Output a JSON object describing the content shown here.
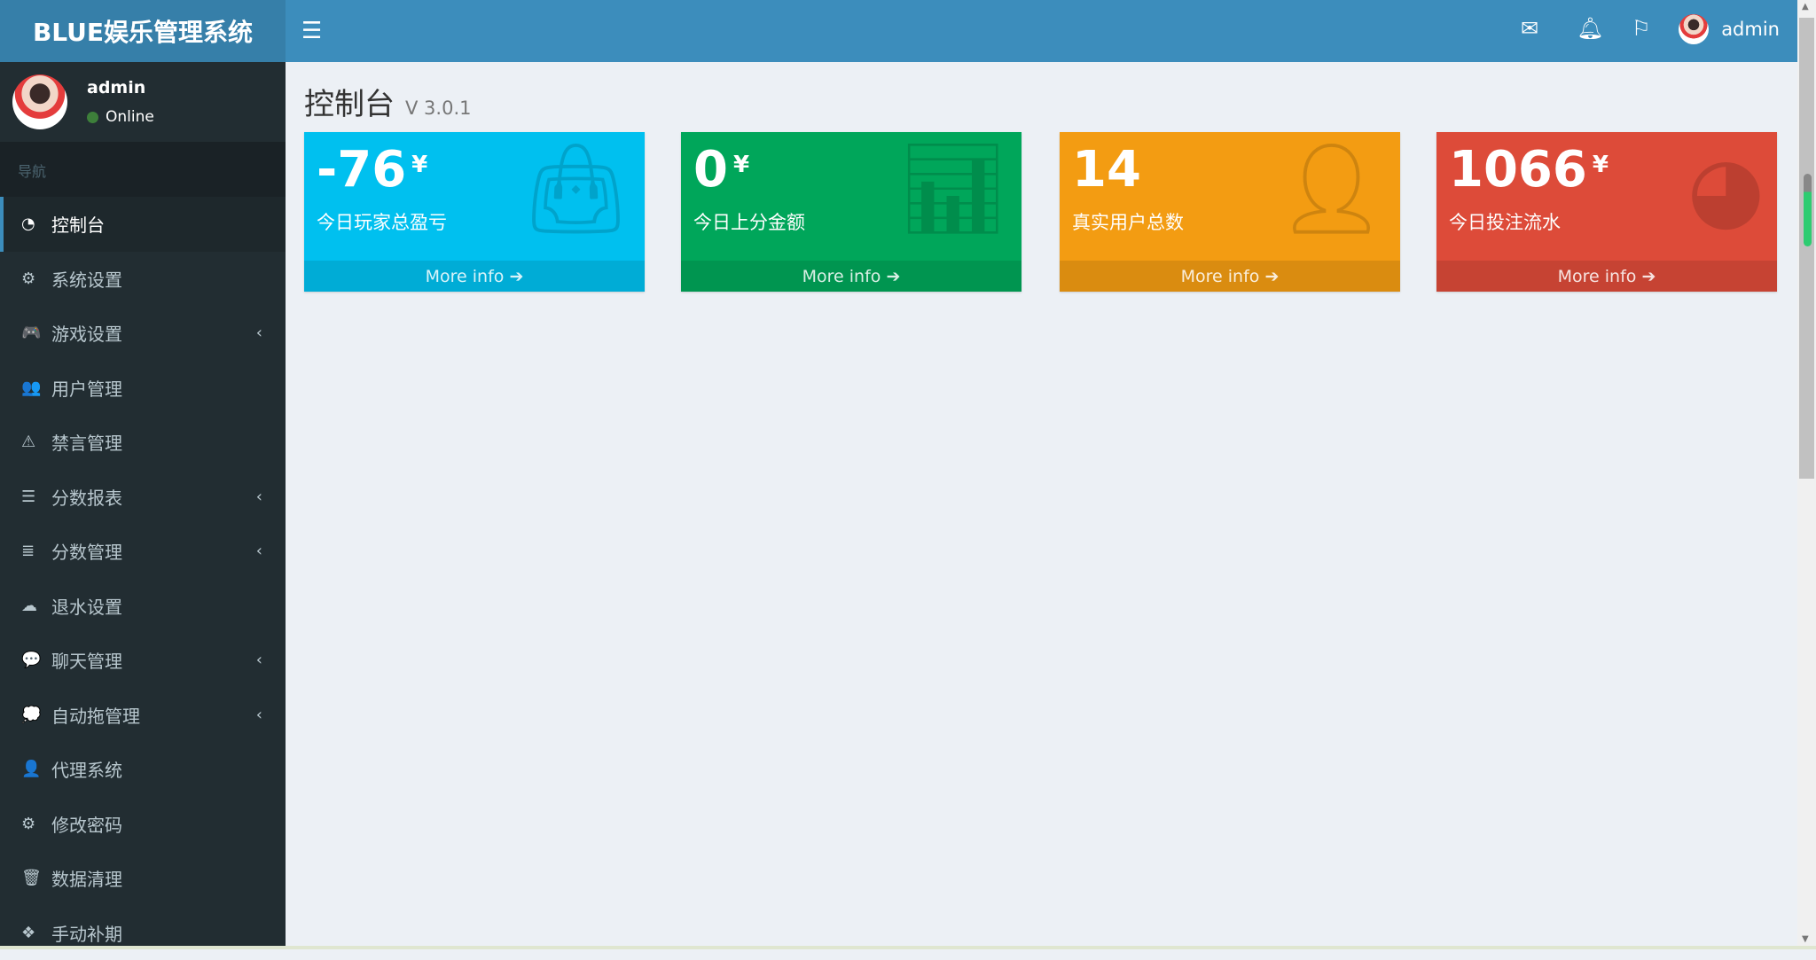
{
  "app": {
    "title": "BLUE娱乐管理系统"
  },
  "topbar": {
    "user": "admin",
    "icons": [
      "envelope-icon",
      "bell-icon",
      "flag-icon"
    ]
  },
  "user_panel": {
    "name": "admin",
    "status": "Online"
  },
  "nav": {
    "header": "导航",
    "items": [
      {
        "label": "控制台",
        "icon": "dashboard-icon",
        "glyph": "◔",
        "active": true,
        "submenu": false
      },
      {
        "label": "系统设置",
        "icon": "gears-icon",
        "glyph": "⚙",
        "submenu": false
      },
      {
        "label": "游戏设置",
        "icon": "gamepad-icon",
        "glyph": "🎮",
        "submenu": true
      },
      {
        "label": "用户管理",
        "icon": "users-icon",
        "glyph": "👥",
        "submenu": false
      },
      {
        "label": "禁言管理",
        "icon": "warning-icon",
        "glyph": "⚠",
        "submenu": false
      },
      {
        "label": "分数报表",
        "icon": "list-ol-icon",
        "glyph": "☰",
        "submenu": true
      },
      {
        "label": "分数管理",
        "icon": "database-icon",
        "glyph": "≣",
        "submenu": true
      },
      {
        "label": "退水设置",
        "icon": "cloud-download-icon",
        "glyph": "☁",
        "submenu": false
      },
      {
        "label": "聊天管理",
        "icon": "comments-icon",
        "glyph": "💬",
        "submenu": true
      },
      {
        "label": "自动拖管理",
        "icon": "commenting-icon",
        "glyph": "💭",
        "submenu": true
      },
      {
        "label": "代理系统",
        "icon": "user-plus-icon",
        "glyph": "👤",
        "submenu": false
      },
      {
        "label": "修改密码",
        "icon": "cog-icon",
        "glyph": "⚙",
        "submenu": false
      },
      {
        "label": "数据清理",
        "icon": "trash-icon",
        "glyph": "🗑",
        "submenu": false
      },
      {
        "label": "手动补期",
        "icon": "cubes-icon",
        "glyph": "❖",
        "submenu": false
      }
    ]
  },
  "page": {
    "title": "控制台",
    "version": "V 3.0.1"
  },
  "cards": [
    {
      "value": "-76",
      "unit": "¥",
      "label": "今日玩家总盈亏",
      "more": "More info",
      "icon": "shopping-bag-icon",
      "color": "#00c0ef"
    },
    {
      "value": "0",
      "unit": "¥",
      "label": "今日上分金额",
      "more": "More info",
      "icon": "bar-chart-icon",
      "color": "#00a65a"
    },
    {
      "value": "14",
      "unit": "",
      "label": "真实用户总数",
      "more": "More info",
      "icon": "user-plus-icon",
      "color": "#f39c12"
    },
    {
      "value": "1066",
      "unit": "¥",
      "label": "今日投注流水",
      "more": "More info",
      "icon": "pie-chart-icon",
      "color": "#dd4b39"
    }
  ]
}
